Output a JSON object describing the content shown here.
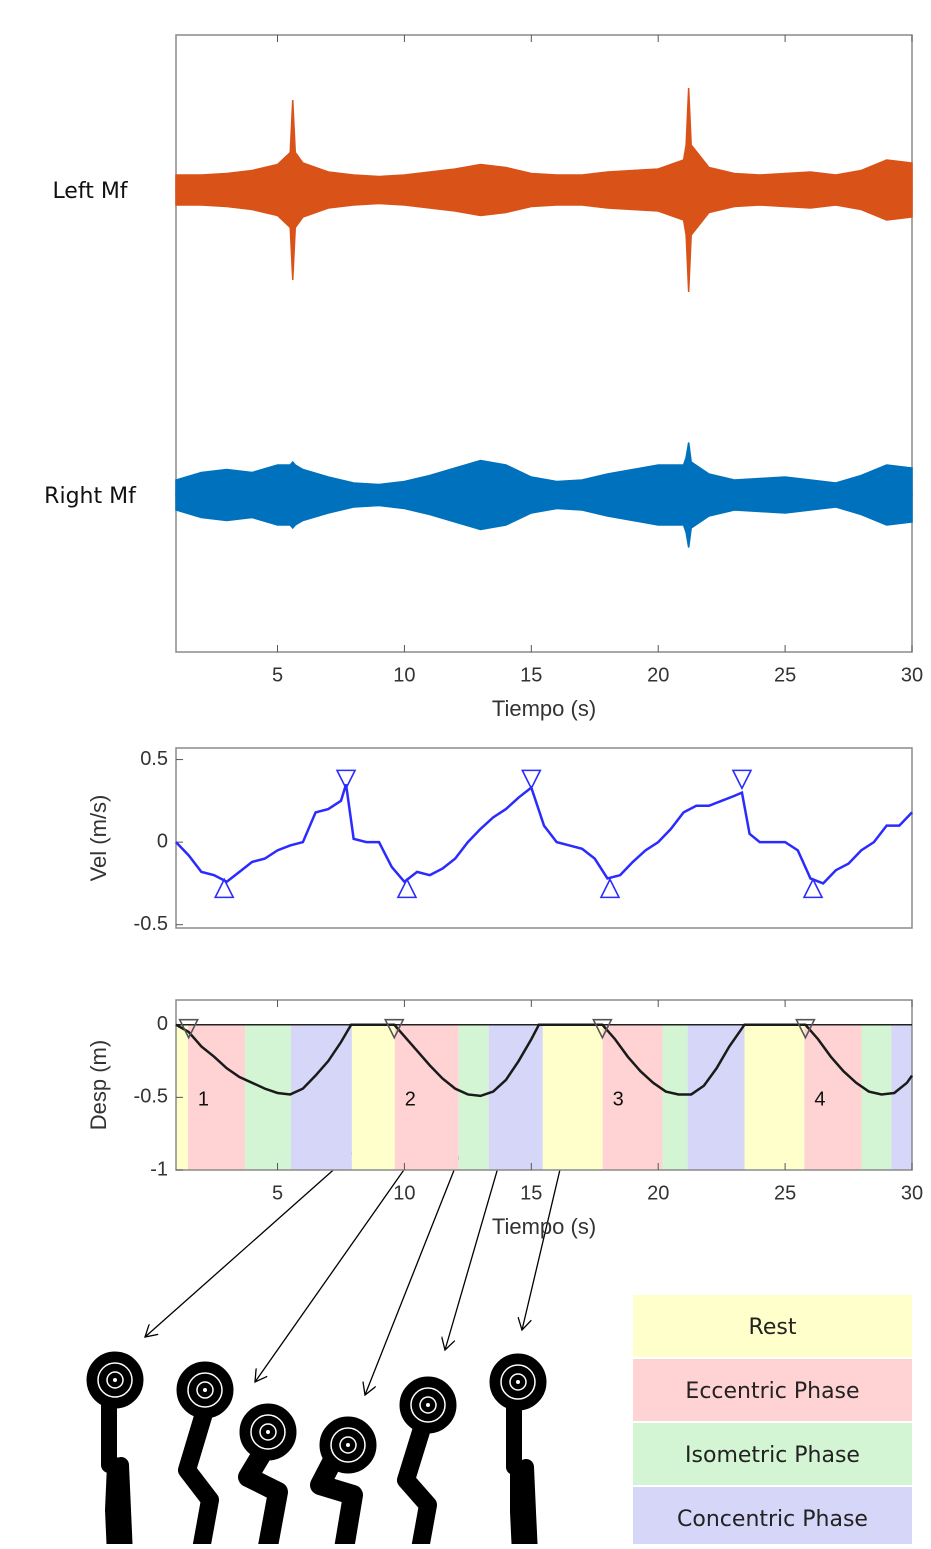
{
  "chart_data": [
    {
      "type": "band",
      "xlabel": "Tiempo (s)",
      "xlim": [
        1,
        30
      ],
      "xticks": [
        5,
        10,
        15,
        20,
        25,
        30
      ],
      "ylim": [
        -1,
        1
      ],
      "x": [
        1,
        2,
        3,
        4,
        5,
        5.5,
        5.6,
        5.7,
        6,
        7,
        8,
        9,
        10,
        11,
        12,
        13,
        14,
        15,
        16,
        17,
        18,
        19,
        20,
        21,
        21.1,
        21.2,
        21.3,
        22,
        23,
        24,
        25,
        26,
        27,
        28,
        29,
        30
      ],
      "series": [
        {
          "name": "Left Mf",
          "color": "#d95319",
          "values": [
            0.1,
            0.1,
            0.11,
            0.13,
            0.17,
            0.25,
            0.6,
            0.25,
            0.18,
            0.12,
            0.1,
            0.09,
            0.1,
            0.12,
            0.14,
            0.17,
            0.15,
            0.11,
            0.1,
            0.1,
            0.12,
            0.13,
            0.14,
            0.2,
            0.3,
            0.68,
            0.3,
            0.15,
            0.11,
            0.1,
            0.11,
            0.12,
            0.1,
            0.13,
            0.2,
            0.18
          ]
        },
        {
          "name": "Right Mf",
          "color": "#0072bd",
          "values": [
            0.1,
            0.15,
            0.17,
            0.15,
            0.2,
            0.2,
            0.22,
            0.2,
            0.17,
            0.12,
            0.08,
            0.07,
            0.09,
            0.13,
            0.18,
            0.23,
            0.2,
            0.12,
            0.09,
            0.1,
            0.14,
            0.17,
            0.2,
            0.2,
            0.25,
            0.35,
            0.22,
            0.14,
            0.1,
            0.11,
            0.12,
            0.1,
            0.08,
            0.13,
            0.2,
            0.18
          ]
        }
      ]
    },
    {
      "type": "line",
      "ylabel": "Vel (m/s)",
      "xlim": [
        1,
        30
      ],
      "ylim": [
        -0.52,
        0.57
      ],
      "yticks": [
        -0.5,
        0,
        0.5
      ],
      "color": "#2b2bff",
      "x": [
        1,
        1.5,
        2,
        2.5,
        3,
        3.5,
        4,
        4.5,
        5,
        5.5,
        6,
        6.5,
        7,
        7.5,
        7.7,
        8,
        8.5,
        9,
        9.5,
        10,
        10.5,
        11,
        11.5,
        12,
        12.5,
        13,
        13.5,
        14,
        14.5,
        15,
        15.5,
        16,
        16.5,
        17,
        17.5,
        18,
        18.5,
        19,
        19.5,
        20,
        20.5,
        21,
        21.5,
        22,
        22.5,
        23,
        23.3,
        23.6,
        24,
        24.5,
        25,
        25.5,
        26,
        26.5,
        27,
        27.5,
        28,
        28.5,
        29,
        29.5,
        30
      ],
      "values": [
        0,
        -0.08,
        -0.18,
        -0.2,
        -0.24,
        -0.18,
        -0.12,
        -0.1,
        -0.05,
        -0.02,
        0,
        0.18,
        0.2,
        0.25,
        0.35,
        0.02,
        0,
        0,
        -0.15,
        -0.24,
        -0.18,
        -0.2,
        -0.16,
        -0.1,
        0,
        0.08,
        0.15,
        0.2,
        0.27,
        0.33,
        0.1,
        0,
        -0.02,
        -0.04,
        -0.1,
        -0.22,
        -0.2,
        -0.12,
        -0.05,
        0,
        0.08,
        0.18,
        0.22,
        0.22,
        0.25,
        0.28,
        0.3,
        0.05,
        0,
        0,
        0,
        -0.05,
        -0.22,
        -0.25,
        -0.17,
        -0.13,
        -0.05,
        0,
        0.1,
        0.1,
        0.18
      ],
      "peaks": {
        "x": [
          7.7,
          15,
          23.3
        ],
        "values": [
          0.38,
          0.38,
          0.38
        ]
      },
      "troughs": {
        "x": [
          2.9,
          10.1,
          18.1,
          26.1
        ],
        "values": [
          -0.28,
          -0.28,
          -0.28,
          -0.28
        ]
      }
    },
    {
      "type": "line",
      "ylabel": "Desp (m)",
      "xlabel": "Tiempo (s)",
      "xlim": [
        1,
        30
      ],
      "ylim": [
        -1,
        0.17
      ],
      "xticks": [
        5,
        10,
        15,
        20,
        25,
        30
      ],
      "yticks": [
        -1,
        -0.5,
        0
      ],
      "color": "#1a1a1a",
      "x": [
        1,
        1.5,
        2,
        2.5,
        3,
        3.5,
        4,
        4.5,
        5,
        5.5,
        6,
        6.5,
        7,
        7.5,
        7.9,
        8.5,
        9,
        9.6,
        10,
        10.5,
        11,
        11.5,
        12,
        12.5,
        13,
        13.5,
        14,
        14.5,
        15,
        15.3,
        16,
        17,
        17.8,
        18.3,
        18.8,
        19.3,
        19.8,
        20.3,
        20.8,
        21.3,
        21.8,
        22.3,
        22.8,
        23.4,
        24,
        25,
        25.8,
        26.3,
        26.8,
        27.3,
        27.8,
        28.3,
        28.8,
        29.3,
        29.8,
        30
      ],
      "values": [
        0,
        -0.05,
        -0.15,
        -0.22,
        -0.3,
        -0.36,
        -0.4,
        -0.44,
        -0.47,
        -0.48,
        -0.44,
        -0.35,
        -0.25,
        -0.12,
        0,
        0,
        0,
        0,
        -0.08,
        -0.18,
        -0.28,
        -0.37,
        -0.44,
        -0.48,
        -0.49,
        -0.46,
        -0.38,
        -0.25,
        -0.1,
        0,
        0,
        0,
        0,
        -0.1,
        -0.22,
        -0.32,
        -0.4,
        -0.46,
        -0.48,
        -0.48,
        -0.42,
        -0.3,
        -0.15,
        0,
        0,
        0,
        0,
        -0.1,
        -0.22,
        -0.32,
        -0.4,
        -0.46,
        -0.48,
        -0.47,
        -0.4,
        -0.35
      ],
      "markers": {
        "x": [
          1.5,
          9.6,
          17.8,
          25.8
        ],
        "values": [
          0,
          0,
          0,
          0
        ]
      },
      "reps": [
        "1",
        "2",
        "3",
        "4"
      ],
      "phases": [
        {
          "name": "Rest",
          "color": "#ffffcc",
          "ranges": [
            [
              1,
              1.47
            ],
            [
              7.93,
              9.62
            ],
            [
              15.45,
              17.81
            ],
            [
              23.4,
              25.76
            ]
          ]
        },
        {
          "name": "Eccentric Phase",
          "color": "#ffd3d3",
          "ranges": [
            [
              1.47,
              3.72
            ],
            [
              9.62,
              12.14
            ],
            [
              17.81,
              20.17
            ],
            [
              25.76,
              28.01
            ]
          ]
        },
        {
          "name": "Isometric Phase",
          "color": "#d4f5d4",
          "ranges": [
            [
              3.72,
              5.53
            ],
            [
              12.14,
              13.32
            ],
            [
              20.17,
              21.16
            ],
            [
              28.01,
              29.19
            ]
          ]
        },
        {
          "name": "Concentric Phase",
          "color": "#d6d6f8",
          "ranges": [
            [
              5.53,
              7.93
            ],
            [
              13.32,
              15.45
            ],
            [
              21.16,
              23.4
            ],
            [
              29.19,
              30
            ]
          ]
        }
      ]
    }
  ]
}
